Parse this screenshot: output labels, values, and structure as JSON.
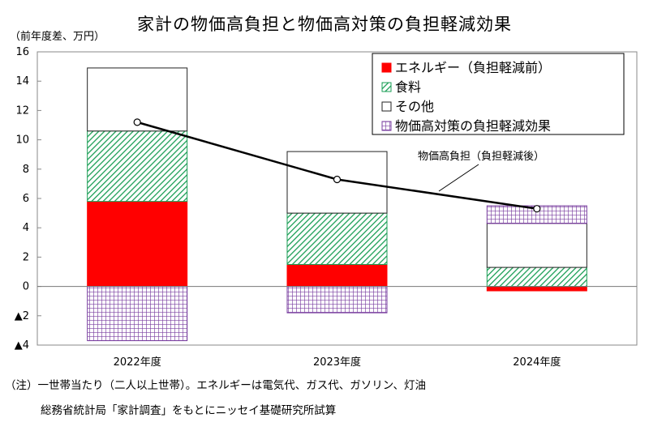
{
  "header": {
    "title": "家計の物価高負担と物価高対策の負担軽減効果",
    "unit": "（前年度差、万円）"
  },
  "notes": {
    "note1": "（注）一世帯当たり（二人以上世帯）。エネルギーは電気代、ガス代、ガソリン、灯油",
    "note2": "総務省統計局「家計調査」をもとにニッセイ基礎研究所試算"
  },
  "chart_data": {
    "type": "bar",
    "stacked": true,
    "categories": [
      "2022年度",
      "2023年度",
      "2024年度"
    ],
    "ylim": [
      -4,
      16
    ],
    "yticks": [
      {
        "value": 16,
        "label": "16"
      },
      {
        "value": 14,
        "label": "14"
      },
      {
        "value": 12,
        "label": "12"
      },
      {
        "value": 10,
        "label": "10"
      },
      {
        "value": 8,
        "label": "8"
      },
      {
        "value": 6,
        "label": "6"
      },
      {
        "value": 4,
        "label": "4"
      },
      {
        "value": 2,
        "label": "2"
      },
      {
        "value": 0,
        "label": "0"
      },
      {
        "value": -2,
        "label": "▲2"
      },
      {
        "value": -4,
        "label": "▲4"
      }
    ],
    "grid": false,
    "legend_position": "top-right",
    "series": [
      {
        "name": "エネルギー（負担軽減前）",
        "values": [
          5.8,
          1.5,
          -0.3
        ],
        "color": "#ff0000",
        "pattern": "solid"
      },
      {
        "name": "食料",
        "values": [
          4.8,
          3.5,
          1.3
        ],
        "color": "#1a9e55",
        "pattern": "diagonal"
      },
      {
        "name": "その他",
        "values": [
          4.3,
          4.2,
          3.0
        ],
        "color": "#ffffff",
        "pattern": "solid"
      },
      {
        "name": "物価高対策の負担軽減効果",
        "values": [
          -3.7,
          -1.8,
          1.2
        ],
        "color": "#7a3fa0",
        "pattern": "grid"
      }
    ],
    "line": {
      "name": "物価高負担（負担軽減後）",
      "values": [
        11.2,
        7.3,
        5.3
      ]
    },
    "annotation": "物価高負担（負担軽減後）"
  }
}
